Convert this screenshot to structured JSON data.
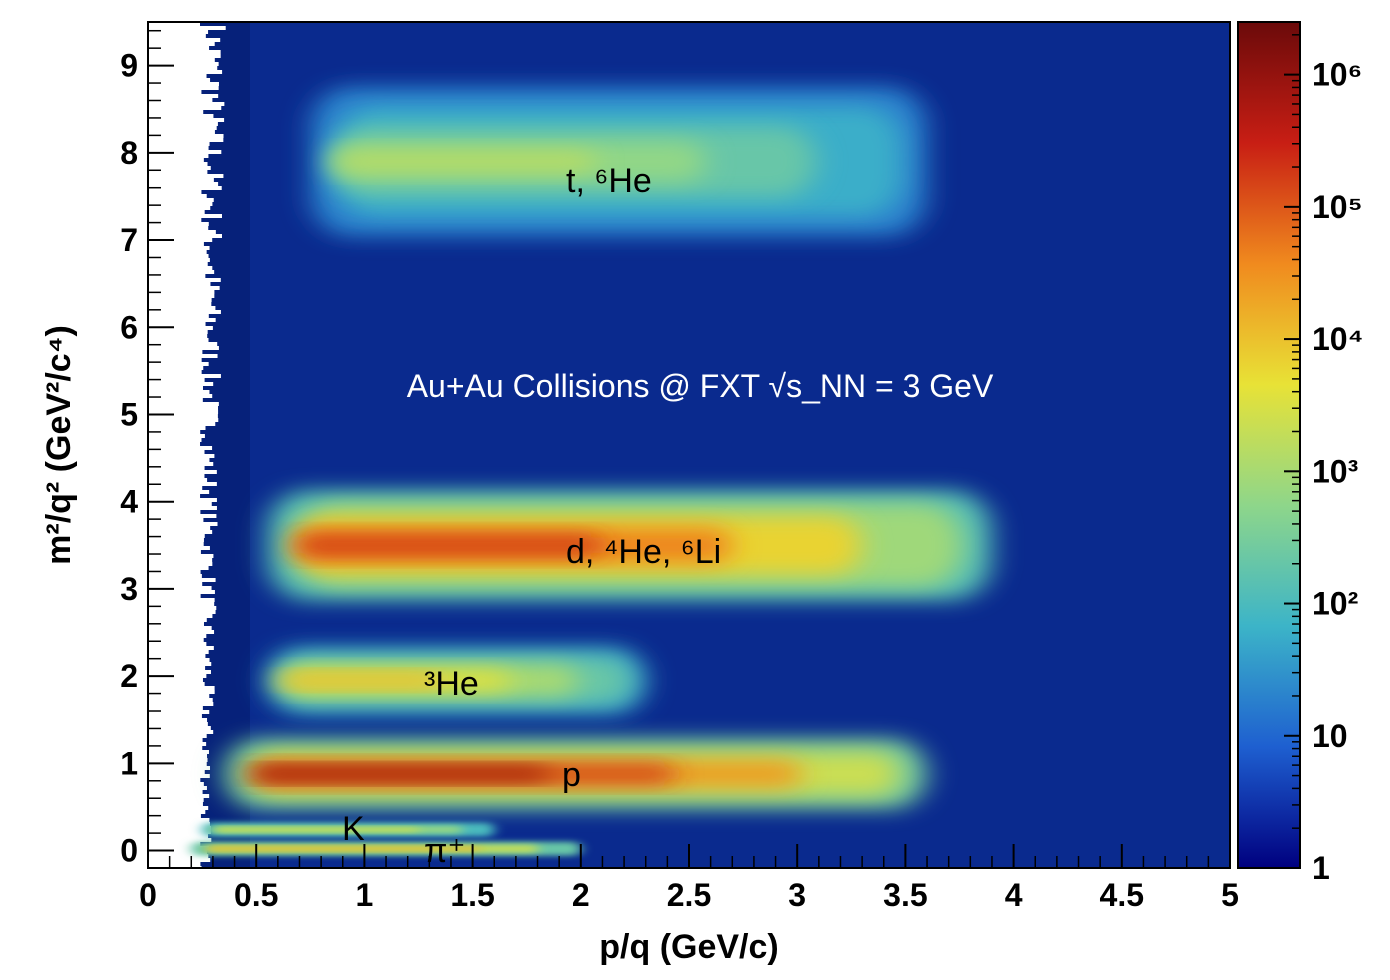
{
  "chart_data": {
    "type": "heatmap",
    "title": "",
    "xlabel": "p/q (GeV/c)",
    "ylabel": "m²/q² (GeV²/c⁴)",
    "xlim": [
      0,
      5
    ],
    "ylim": [
      -0.2,
      9.5
    ],
    "x_ticks": [
      "0",
      "0.5",
      "1",
      "1.5",
      "2",
      "2.5",
      "3",
      "3.5",
      "4",
      "4.5",
      "5"
    ],
    "y_ticks": [
      "0",
      "1",
      "2",
      "3",
      "4",
      "5",
      "6",
      "7",
      "8",
      "9"
    ],
    "z_scale": "log",
    "z_range": [
      1,
      2500000
    ],
    "colorbar_ticks": [
      "1",
      "10",
      "10²",
      "10³",
      "10⁴",
      "10⁵",
      "10⁶"
    ],
    "colormap": [
      "#00007f",
      "#1e5fd0",
      "#3cb4c8",
      "#8ed68a",
      "#e8e236",
      "#f08a1e",
      "#c81e14",
      "#6b0a0a"
    ],
    "annotations": {
      "header": "Au+Au Collisions @ FXT √s_NN = 3 GeV",
      "triton": "t, ⁶He",
      "deuteron": "d, ⁴He, ⁶Li",
      "helium3": "³He",
      "proton": "p",
      "kaon": "K",
      "pion": "π⁺"
    },
    "bands": [
      {
        "label": "π⁺",
        "m2": 0.02,
        "p_start": 0.2,
        "p_end": 2.0,
        "peak_log10": 4.2
      },
      {
        "label": "K",
        "m2": 0.24,
        "p_start": 0.25,
        "p_end": 1.6,
        "peak_log10": 3.6
      },
      {
        "label": "p",
        "m2": 0.88,
        "p_start": 0.35,
        "p_end": 3.6,
        "peak_log10": 6.1
      },
      {
        "label": "³He",
        "m2": 1.95,
        "p_start": 0.55,
        "p_end": 2.3,
        "peak_log10": 4.2
      },
      {
        "label": "d, ⁴He, ⁶Li",
        "m2": 3.5,
        "p_start": 0.55,
        "p_end": 3.9,
        "peak_log10": 5.3
      },
      {
        "label": "t, ⁶He",
        "m2": 7.9,
        "p_start": 0.75,
        "p_end": 3.6,
        "peak_log10": 3.2
      }
    ]
  }
}
